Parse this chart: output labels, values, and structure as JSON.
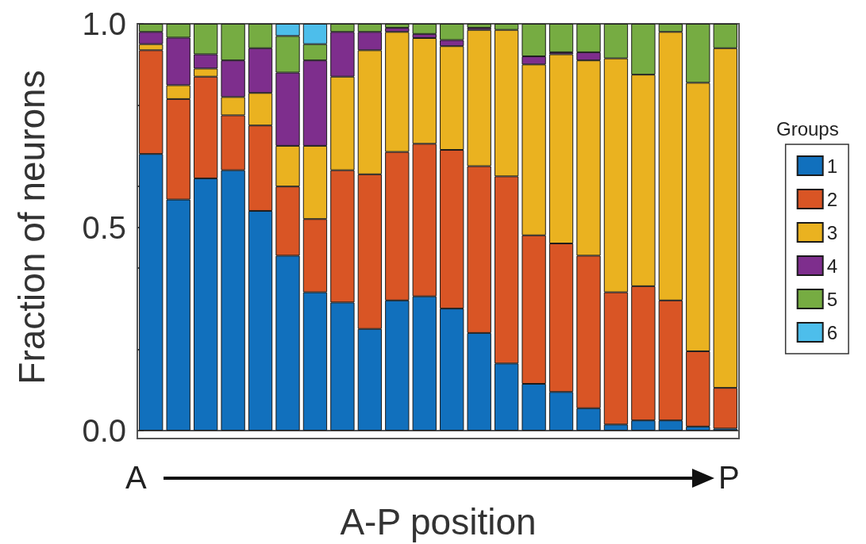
{
  "chart_data": {
    "type": "bar",
    "stacked": true,
    "ylabel": "Fraction of neurons",
    "xlabel": "A-P position",
    "legend_title": "Groups",
    "legend": "right",
    "grid": false,
    "categories": [
      null,
      null,
      null,
      null,
      null,
      null,
      null,
      null,
      null,
      null,
      null,
      null,
      null,
      null,
      null,
      null,
      null,
      null,
      null,
      null,
      null,
      null
    ],
    "ylim": [
      0,
      1
    ],
    "yticks": [
      {
        "value": 0,
        "label": "0.0"
      },
      {
        "value": 0.2,
        "label": null
      },
      {
        "value": 0.4,
        "label": null
      },
      {
        "value": 0.5,
        "label": "0.5"
      },
      {
        "value": 0.6,
        "label": null
      },
      {
        "value": 0.8,
        "label": null
      },
      {
        "value": 1,
        "label": "1.0"
      }
    ],
    "annotations": [
      "A",
      "P"
    ],
    "series": [
      {
        "name": "1",
        "color": "#1170bd",
        "values": [
          0.68,
          0.568,
          0.62,
          0.64,
          0.54,
          0.43,
          0.34,
          0.315,
          0.25,
          0.32,
          0.33,
          0.3,
          0.24,
          0.165,
          0.115,
          0.095,
          0.055,
          0.015,
          0.025,
          0.025,
          0.01,
          0.005
        ]
      },
      {
        "name": "2",
        "color": "#d95525",
        "values": [
          0.255,
          0.247,
          0.25,
          0.135,
          0.21,
          0.17,
          0.18,
          0.325,
          0.38,
          0.365,
          0.375,
          0.39,
          0.41,
          0.46,
          0.365,
          0.365,
          0.375,
          0.325,
          0.33,
          0.295,
          0.185,
          0.1
        ]
      },
      {
        "name": "3",
        "color": "#eab220",
        "values": [
          0.015,
          0.034,
          0.02,
          0.045,
          0.08,
          0.1,
          0.18,
          0.23,
          0.305,
          0.295,
          0.26,
          0.255,
          0.335,
          0.36,
          0.42,
          0.465,
          0.48,
          0.575,
          0.52,
          0.66,
          0.66,
          0.835
        ]
      },
      {
        "name": "4",
        "color": "#7e2e8d",
        "values": [
          0.03,
          0.117,
          0.035,
          0.09,
          0.11,
          0.18,
          0.21,
          0.11,
          0.045,
          0.01,
          0.01,
          0.015,
          0.005,
          0,
          0.02,
          0.005,
          0.02,
          0,
          0,
          0,
          0,
          0
        ]
      },
      {
        "name": "5",
        "color": "#76ac42",
        "values": [
          0.02,
          0.034,
          0.075,
          0.09,
          0.06,
          0.09,
          0.04,
          0.02,
          0.02,
          0.01,
          0.025,
          0.04,
          0.01,
          0.015,
          0.08,
          0.07,
          0.07,
          0.085,
          0.125,
          0.02,
          0.145,
          0.06
        ]
      },
      {
        "name": "6",
        "color": "#4dbeeb",
        "values": [
          0,
          0,
          0,
          0,
          0,
          0.03,
          0.05,
          0,
          0,
          0,
          0,
          0,
          0,
          0,
          0,
          0,
          0,
          0,
          0,
          0,
          0,
          0
        ]
      }
    ]
  }
}
